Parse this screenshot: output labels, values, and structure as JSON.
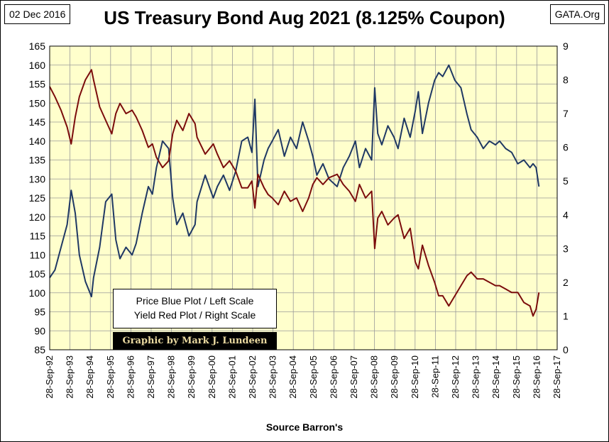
{
  "header": {
    "date": "02 Dec 2016",
    "title": "US Treasury Bond Aug 2021 (8.125% Coupon)",
    "site": "GATA.Org"
  },
  "legend": {
    "line1": "Price Blue Plot / Left Scale",
    "line2": "Yield Red Plot / Right Scale",
    "credit": "Graphic by Mark J. Lundeen"
  },
  "footer": {
    "source": "Source Barron's"
  },
  "chart_data": {
    "type": "line",
    "title": "US Treasury Bond Aug 2021 (8.125% Coupon)",
    "xlabel": "Source Barron's",
    "x_tick_labels": [
      "28-Sep-92",
      "28-Sep-93",
      "28-Sep-94",
      "28-Sep-95",
      "28-Sep-96",
      "28-Sep-97",
      "28-Sep-98",
      "28-Sep-99",
      "28-Sep-00",
      "28-Sep-01",
      "28-Sep-02",
      "28-Sep-03",
      "28-Sep-04",
      "28-Sep-05",
      "28-Sep-06",
      "28-Sep-07",
      "28-Sep-08",
      "28-Sep-09",
      "28-Sep-10",
      "28-Sep-11",
      "28-Sep-12",
      "28-Sep-13",
      "28-Sep-14",
      "28-Sep-15",
      "28-Sep-16",
      "28-Sep-17"
    ],
    "xlim": [
      1992.74,
      2017.74
    ],
    "y_left": {
      "label": "Price",
      "ylim": [
        85,
        165
      ],
      "ticks": [
        85,
        90,
        95,
        100,
        105,
        110,
        115,
        120,
        125,
        130,
        135,
        140,
        145,
        150,
        155,
        160,
        165
      ]
    },
    "y_right": {
      "label": "Yield",
      "ylim": [
        0,
        9
      ],
      "ticks": [
        0,
        1,
        2,
        3,
        4,
        5,
        6,
        7,
        8,
        9
      ]
    },
    "grid": true,
    "colors": {
      "price": "#1f3864",
      "yield": "#7b0c0c",
      "plot_bg": "#ffffcc",
      "grid": "#9a9a9a"
    },
    "series": [
      {
        "name": "Price",
        "axis": "left",
        "x": [
          1992.74,
          1993.0,
          1993.3,
          1993.6,
          1993.8,
          1994.0,
          1994.2,
          1994.5,
          1994.8,
          1994.9,
          1995.2,
          1995.5,
          1995.8,
          1996.0,
          1996.2,
          1996.5,
          1996.8,
          1997.0,
          1997.3,
          1997.6,
          1997.8,
          1998.0,
          1998.3,
          1998.6,
          1998.8,
          1999.0,
          1999.3,
          1999.6,
          1999.9,
          2000.0,
          2000.4,
          2000.8,
          2001.0,
          2001.3,
          2001.6,
          2001.9,
          2002.2,
          2002.5,
          2002.7,
          2002.85,
          2003.0,
          2003.3,
          2003.5,
          2003.7,
          2004.0,
          2004.3,
          2004.6,
          2004.9,
          2005.2,
          2005.5,
          2005.7,
          2005.9,
          2006.2,
          2006.5,
          2006.9,
          2007.2,
          2007.5,
          2007.8,
          2008.0,
          2008.3,
          2008.6,
          2008.75,
          2008.9,
          2009.1,
          2009.4,
          2009.7,
          2009.9,
          2010.2,
          2010.5,
          2010.75,
          2010.9,
          2011.1,
          2011.4,
          2011.7,
          2011.9,
          2012.1,
          2012.4,
          2012.7,
          2013.0,
          2013.3,
          2013.5,
          2013.8,
          2014.1,
          2014.4,
          2014.7,
          2014.9,
          2015.2,
          2015.5,
          2015.8,
          2016.1,
          2016.4,
          2016.55,
          2016.7,
          2016.84
        ],
        "values": [
          104,
          106,
          112,
          118,
          127,
          121,
          110,
          103,
          99,
          104,
          112,
          124,
          126,
          114,
          109,
          112,
          110,
          113,
          121,
          128,
          126,
          133,
          140,
          138,
          125,
          118,
          121,
          115,
          118,
          124,
          131,
          125,
          128,
          131,
          127,
          132,
          140,
          141,
          137,
          151,
          128,
          135,
          138,
          140,
          143,
          136,
          141,
          138,
          145,
          140,
          136,
          131,
          134,
          130,
          128,
          133,
          136,
          140,
          133,
          138,
          135,
          154,
          142,
          139,
          144,
          141,
          138,
          146,
          141,
          148,
          153,
          142,
          150,
          156,
          158,
          157,
          160,
          156,
          154,
          147,
          143,
          141,
          138,
          140,
          139,
          140,
          138,
          137,
          134,
          135,
          133,
          134,
          133,
          128
        ]
      },
      {
        "name": "Yield",
        "axis": "right",
        "x": [
          1992.74,
          1993.0,
          1993.3,
          1993.6,
          1993.8,
          1994.0,
          1994.2,
          1994.5,
          1994.8,
          1994.9,
          1995.2,
          1995.5,
          1995.8,
          1996.0,
          1996.2,
          1996.5,
          1996.8,
          1997.0,
          1997.3,
          1997.6,
          1997.8,
          1998.0,
          1998.3,
          1998.6,
          1998.8,
          1999.0,
          1999.3,
          1999.6,
          1999.9,
          2000.0,
          2000.4,
          2000.8,
          2001.0,
          2001.3,
          2001.6,
          2001.9,
          2002.2,
          2002.5,
          2002.7,
          2002.85,
          2003.0,
          2003.3,
          2003.5,
          2003.7,
          2004.0,
          2004.3,
          2004.6,
          2004.9,
          2005.2,
          2005.5,
          2005.7,
          2005.9,
          2006.2,
          2006.5,
          2006.9,
          2007.2,
          2007.5,
          2007.8,
          2008.0,
          2008.3,
          2008.6,
          2008.75,
          2008.9,
          2009.1,
          2009.4,
          2009.7,
          2009.9,
          2010.2,
          2010.5,
          2010.75,
          2010.9,
          2011.1,
          2011.4,
          2011.7,
          2011.9,
          2012.1,
          2012.4,
          2012.7,
          2013.0,
          2013.3,
          2013.5,
          2013.8,
          2014.1,
          2014.4,
          2014.7,
          2014.9,
          2015.2,
          2015.5,
          2015.8,
          2016.1,
          2016.4,
          2016.55,
          2016.7,
          2016.84
        ],
        "values": [
          7.8,
          7.5,
          7.1,
          6.6,
          6.1,
          6.9,
          7.5,
          8.0,
          8.3,
          8.0,
          7.2,
          6.8,
          6.4,
          7.0,
          7.3,
          7.0,
          7.1,
          6.9,
          6.5,
          6.0,
          6.1,
          5.7,
          5.4,
          5.6,
          6.4,
          6.8,
          6.5,
          7.0,
          6.7,
          6.3,
          5.8,
          6.1,
          5.8,
          5.4,
          5.6,
          5.3,
          4.8,
          4.8,
          5.0,
          4.2,
          5.2,
          4.8,
          4.6,
          4.5,
          4.3,
          4.7,
          4.4,
          4.5,
          4.1,
          4.5,
          4.9,
          5.1,
          4.9,
          5.1,
          5.2,
          4.9,
          4.7,
          4.4,
          4.9,
          4.5,
          4.7,
          3.0,
          3.9,
          4.1,
          3.7,
          3.9,
          4.0,
          3.3,
          3.6,
          2.6,
          2.4,
          3.1,
          2.5,
          2.0,
          1.6,
          1.6,
          1.3,
          1.6,
          1.9,
          2.2,
          2.3,
          2.1,
          2.1,
          2.0,
          1.9,
          1.9,
          1.8,
          1.7,
          1.7,
          1.4,
          1.3,
          1.0,
          1.2,
          1.7
        ]
      }
    ]
  }
}
